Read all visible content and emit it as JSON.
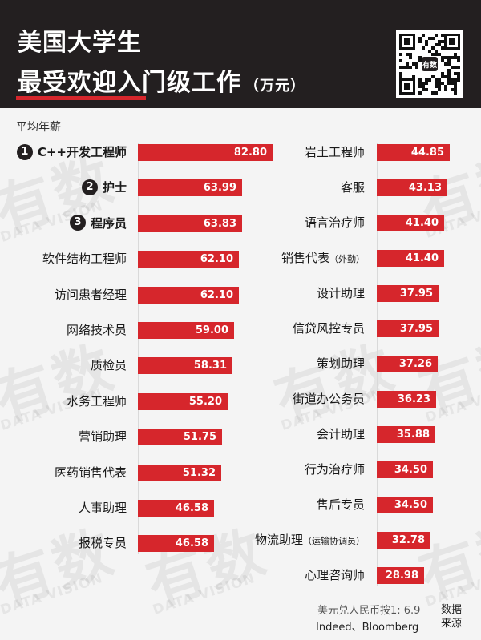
{
  "header": {
    "title_line1": "美国大学生",
    "title_line2": "最受欢迎入门级工作",
    "title_unit": "（万元）",
    "qr_label": "有数"
  },
  "subtitle": "平均年薪",
  "watermark": {
    "big": "有数",
    "small": "DATA VISION"
  },
  "colors": {
    "bar": "#d6262c",
    "header_bg": "#231f20",
    "background": "#f4f4f4"
  },
  "footnote": "美元兑人民币按1: 6.9",
  "source_list": "Indeed、Bloomberg",
  "source_tag": "数据来源",
  "chart_data": {
    "type": "bar",
    "orientation": "horizontal",
    "title": "美国大学生最受欢迎入门级工作（万元）",
    "subtitle": "平均年薪",
    "xlim": [
      0,
      82.8
    ],
    "grid": false,
    "columns": [
      {
        "items": [
          {
            "rank": "1",
            "label": "C++开发工程师",
            "value": 82.8,
            "display": "82.80"
          },
          {
            "rank": "2",
            "label": "护士",
            "value": 63.99,
            "display": "63.99"
          },
          {
            "rank": "3",
            "label": "程序员",
            "value": 63.83,
            "display": "63.83"
          },
          {
            "label": "软件结构工程师",
            "value": 62.1,
            "display": "62.10"
          },
          {
            "label": "访问患者经理",
            "value": 62.1,
            "display": "62.10"
          },
          {
            "label": "网络技术员",
            "value": 59.0,
            "display": "59.00"
          },
          {
            "label": "质检员",
            "value": 58.31,
            "display": "58.31"
          },
          {
            "label": "水务工程师",
            "value": 55.2,
            "display": "55.20"
          },
          {
            "label": "营销助理",
            "value": 51.75,
            "display": "51.75"
          },
          {
            "label": "医药销售代表",
            "value": 51.32,
            "display": "51.32"
          },
          {
            "label": "人事助理",
            "value": 46.58,
            "display": "46.58"
          },
          {
            "label": "报税专员",
            "value": 46.58,
            "display": "46.58"
          }
        ]
      },
      {
        "items": [
          {
            "label": "岩土工程师",
            "value": 44.85,
            "display": "44.85"
          },
          {
            "label": "客服",
            "value": 43.13,
            "display": "43.13"
          },
          {
            "label": "语言治疗师",
            "value": 41.4,
            "display": "41.40"
          },
          {
            "label": "销售代表",
            "note": "（外勤）",
            "value": 41.4,
            "display": "41.40"
          },
          {
            "label": "设计助理",
            "value": 37.95,
            "display": "37.95"
          },
          {
            "label": "信贷风控专员",
            "value": 37.95,
            "display": "37.95"
          },
          {
            "label": "策划助理",
            "value": 37.26,
            "display": "37.26"
          },
          {
            "label": "街道办公务员",
            "value": 36.23,
            "display": "36.23"
          },
          {
            "label": "会计助理",
            "value": 35.88,
            "display": "35.88"
          },
          {
            "label": "行为治疗师",
            "value": 34.5,
            "display": "34.50"
          },
          {
            "label": "售后专员",
            "value": 34.5,
            "display": "34.50"
          },
          {
            "label": "物流助理",
            "note": "（运输协调员）",
            "value": 32.78,
            "display": "32.78"
          },
          {
            "label": "心理咨询师",
            "value": 28.98,
            "display": "28.98"
          }
        ]
      }
    ]
  }
}
